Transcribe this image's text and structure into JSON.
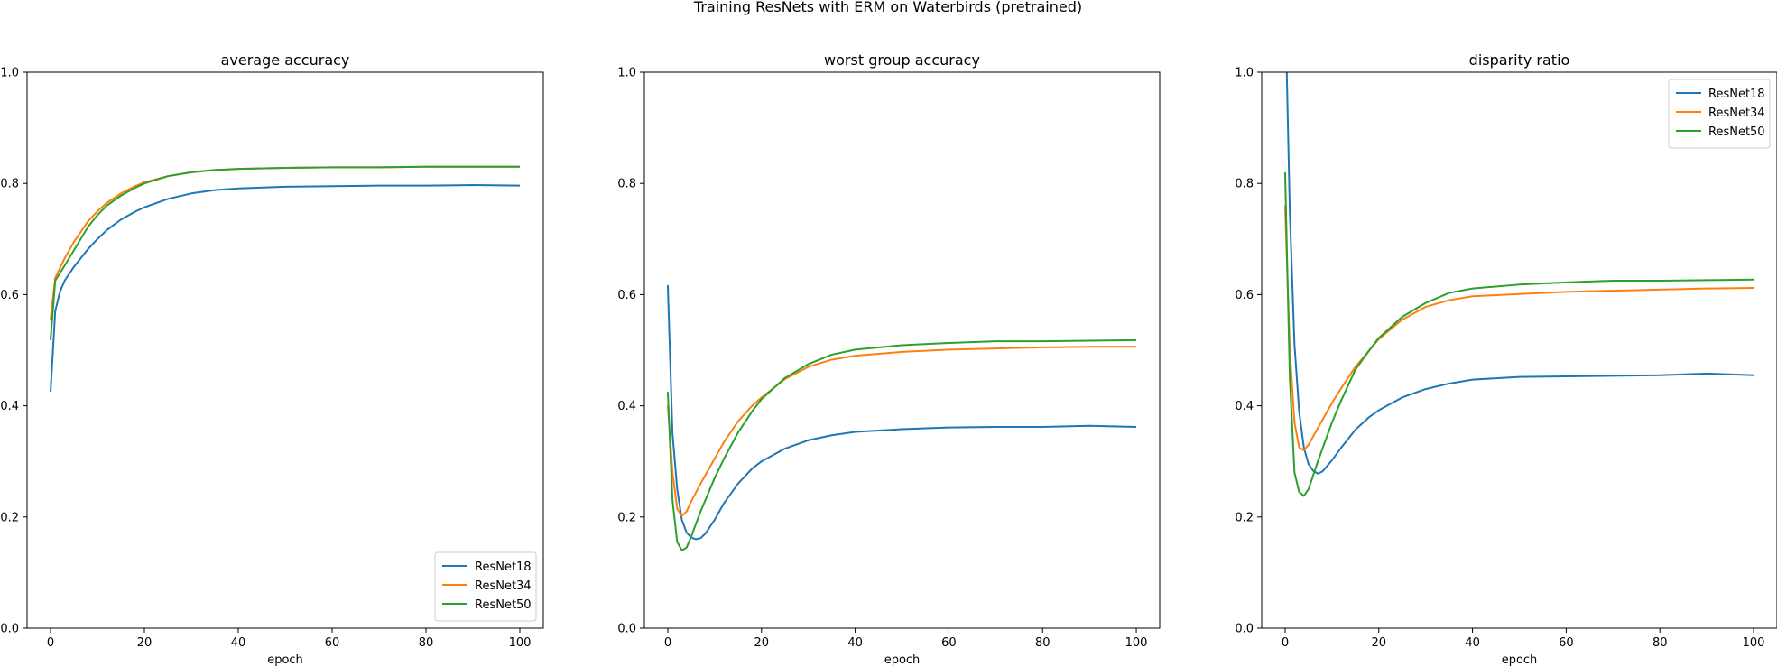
{
  "suptitle": "Training ResNets with ERM on Waterbirds (pretrained)",
  "colors": {
    "ResNet18": "#1f77b4",
    "ResNet34": "#ff7f0e",
    "ResNet50": "#2ca02c"
  },
  "chart_data": [
    {
      "type": "line",
      "title": "average accuracy",
      "xlabel": "epoch",
      "ylabel": "",
      "xlim": [
        -5,
        105
      ],
      "ylim": [
        0.0,
        1.0
      ],
      "xticks": [
        0,
        20,
        40,
        60,
        80,
        100
      ],
      "xtick_labels": [
        "0",
        "20",
        "40",
        "60",
        "80",
        "100"
      ],
      "yticks": [
        0.0,
        0.2,
        0.4,
        0.6,
        0.8,
        1.0
      ],
      "ytick_labels": [
        "0.0",
        "0.2",
        "0.4",
        "0.6",
        "0.8",
        "1.0"
      ],
      "legend": "lower-right",
      "series": [
        {
          "name": "ResNet18",
          "points": [
            [
              0,
              0.425
            ],
            [
              1,
              0.57
            ],
            [
              2,
              0.605
            ],
            [
              3,
              0.625
            ],
            [
              5,
              0.65
            ],
            [
              8,
              0.682
            ],
            [
              10,
              0.7
            ],
            [
              12,
              0.716
            ],
            [
              15,
              0.735
            ],
            [
              18,
              0.749
            ],
            [
              20,
              0.757
            ],
            [
              25,
              0.772
            ],
            [
              30,
              0.782
            ],
            [
              35,
              0.788
            ],
            [
              40,
              0.791
            ],
            [
              50,
              0.794
            ],
            [
              60,
              0.795
            ],
            [
              70,
              0.796
            ],
            [
              80,
              0.796
            ],
            [
              90,
              0.797
            ],
            [
              100,
              0.796
            ]
          ]
        },
        {
          "name": "ResNet34",
          "points": [
            [
              0,
              0.555
            ],
            [
              1,
              0.63
            ],
            [
              3,
              0.665
            ],
            [
              5,
              0.695
            ],
            [
              8,
              0.732
            ],
            [
              10,
              0.75
            ],
            [
              12,
              0.765
            ],
            [
              15,
              0.782
            ],
            [
              18,
              0.795
            ],
            [
              20,
              0.802
            ],
            [
              25,
              0.813
            ],
            [
              30,
              0.82
            ],
            [
              35,
              0.824
            ],
            [
              40,
              0.826
            ],
            [
              50,
              0.828
            ],
            [
              60,
              0.829
            ],
            [
              70,
              0.829
            ],
            [
              80,
              0.83
            ],
            [
              90,
              0.83
            ],
            [
              100,
              0.83
            ]
          ]
        },
        {
          "name": "ResNet50",
          "points": [
            [
              0,
              0.518
            ],
            [
              1,
              0.625
            ],
            [
              3,
              0.652
            ],
            [
              5,
              0.68
            ],
            [
              8,
              0.722
            ],
            [
              10,
              0.743
            ],
            [
              12,
              0.76
            ],
            [
              15,
              0.778
            ],
            [
              18,
              0.792
            ],
            [
              20,
              0.8
            ],
            [
              25,
              0.813
            ],
            [
              30,
              0.82
            ],
            [
              35,
              0.824
            ],
            [
              40,
              0.826
            ],
            [
              50,
              0.828
            ],
            [
              60,
              0.829
            ],
            [
              70,
              0.829
            ],
            [
              80,
              0.83
            ],
            [
              90,
              0.83
            ],
            [
              100,
              0.83
            ]
          ]
        }
      ]
    },
    {
      "type": "line",
      "title": "worst group accuracy",
      "xlabel": "epoch",
      "ylabel": "",
      "xlim": [
        -5,
        105
      ],
      "ylim": [
        0.0,
        1.0
      ],
      "xticks": [
        0,
        20,
        40,
        60,
        80,
        100
      ],
      "xtick_labels": [
        "0",
        "20",
        "40",
        "60",
        "80",
        "100"
      ],
      "yticks": [
        0.0,
        0.2,
        0.4,
        0.6,
        0.8,
        1.0
      ],
      "ytick_labels": [
        "0.0",
        "0.2",
        "0.4",
        "0.6",
        "0.8",
        "1.0"
      ],
      "legend": "none",
      "series": [
        {
          "name": "ResNet18",
          "points": [
            [
              0,
              0.617
            ],
            [
              1,
              0.35
            ],
            [
              2,
              0.25
            ],
            [
              3,
              0.195
            ],
            [
              4,
              0.172
            ],
            [
              5,
              0.163
            ],
            [
              6,
              0.16
            ],
            [
              7,
              0.162
            ],
            [
              8,
              0.17
            ],
            [
              10,
              0.195
            ],
            [
              12,
              0.225
            ],
            [
              15,
              0.26
            ],
            [
              18,
              0.287
            ],
            [
              20,
              0.3
            ],
            [
              25,
              0.323
            ],
            [
              30,
              0.338
            ],
            [
              35,
              0.347
            ],
            [
              40,
              0.353
            ],
            [
              50,
              0.358
            ],
            [
              60,
              0.361
            ],
            [
              70,
              0.362
            ],
            [
              80,
              0.362
            ],
            [
              90,
              0.364
            ],
            [
              100,
              0.362
            ]
          ]
        },
        {
          "name": "ResNet34",
          "points": [
            [
              0,
              0.4
            ],
            [
              1,
              0.28
            ],
            [
              2,
              0.215
            ],
            [
              3,
              0.202
            ],
            [
              4,
              0.21
            ],
            [
              5,
              0.228
            ],
            [
              7,
              0.26
            ],
            [
              10,
              0.305
            ],
            [
              12,
              0.335
            ],
            [
              15,
              0.372
            ],
            [
              18,
              0.4
            ],
            [
              20,
              0.415
            ],
            [
              25,
              0.448
            ],
            [
              30,
              0.47
            ],
            [
              35,
              0.483
            ],
            [
              40,
              0.49
            ],
            [
              50,
              0.497
            ],
            [
              60,
              0.501
            ],
            [
              70,
              0.503
            ],
            [
              80,
              0.505
            ],
            [
              90,
              0.506
            ],
            [
              100,
              0.506
            ]
          ]
        },
        {
          "name": "ResNet50",
          "points": [
            [
              0,
              0.425
            ],
            [
              1,
              0.23
            ],
            [
              2,
              0.155
            ],
            [
              3,
              0.14
            ],
            [
              4,
              0.145
            ],
            [
              5,
              0.165
            ],
            [
              7,
              0.21
            ],
            [
              10,
              0.27
            ],
            [
              12,
              0.305
            ],
            [
              15,
              0.352
            ],
            [
              18,
              0.39
            ],
            [
              20,
              0.412
            ],
            [
              25,
              0.45
            ],
            [
              30,
              0.475
            ],
            [
              35,
              0.492
            ],
            [
              40,
              0.501
            ],
            [
              50,
              0.509
            ],
            [
              60,
              0.513
            ],
            [
              70,
              0.516
            ],
            [
              80,
              0.516
            ],
            [
              90,
              0.517
            ],
            [
              100,
              0.518
            ]
          ]
        }
      ]
    },
    {
      "type": "line",
      "title": "disparity ratio",
      "xlabel": "epoch",
      "ylabel": "",
      "xlim": [
        -5,
        105
      ],
      "ylim": [
        0.0,
        1.0
      ],
      "xticks": [
        0,
        20,
        40,
        60,
        80,
        100
      ],
      "xtick_labels": [
        "0",
        "20",
        "40",
        "60",
        "80",
        "100"
      ],
      "yticks": [
        0.0,
        0.2,
        0.4,
        0.6,
        0.8,
        1.0
      ],
      "ytick_labels": [
        "0.0",
        "0.2",
        "0.4",
        "0.6",
        "0.8",
        "1.0"
      ],
      "legend": "upper-right",
      "series": [
        {
          "name": "ResNet18",
          "points": [
            [
              0.3,
              1.02
            ],
            [
              1,
              0.75
            ],
            [
              2,
              0.51
            ],
            [
              3,
              0.39
            ],
            [
              4,
              0.325
            ],
            [
              5,
              0.295
            ],
            [
              6,
              0.283
            ],
            [
              7,
              0.278
            ],
            [
              8,
              0.282
            ],
            [
              10,
              0.302
            ],
            [
              12,
              0.325
            ],
            [
              15,
              0.357
            ],
            [
              18,
              0.38
            ],
            [
              20,
              0.392
            ],
            [
              25,
              0.415
            ],
            [
              30,
              0.43
            ],
            [
              35,
              0.44
            ],
            [
              40,
              0.447
            ],
            [
              50,
              0.452
            ],
            [
              60,
              0.453
            ],
            [
              70,
              0.454
            ],
            [
              80,
              0.455
            ],
            [
              90,
              0.458
            ],
            [
              100,
              0.455
            ]
          ]
        },
        {
          "name": "ResNet34",
          "points": [
            [
              0,
              0.76
            ],
            [
              1,
              0.5
            ],
            [
              2,
              0.37
            ],
            [
              3,
              0.325
            ],
            [
              4,
              0.32
            ],
            [
              5,
              0.33
            ],
            [
              7,
              0.36
            ],
            [
              10,
              0.405
            ],
            [
              12,
              0.432
            ],
            [
              15,
              0.47
            ],
            [
              18,
              0.5
            ],
            [
              20,
              0.52
            ],
            [
              25,
              0.555
            ],
            [
              30,
              0.578
            ],
            [
              35,
              0.59
            ],
            [
              40,
              0.597
            ],
            [
              50,
              0.601
            ],
            [
              60,
              0.605
            ],
            [
              70,
              0.607
            ],
            [
              80,
              0.609
            ],
            [
              90,
              0.611
            ],
            [
              100,
              0.612
            ]
          ]
        },
        {
          "name": "ResNet50",
          "points": [
            [
              0,
              0.82
            ],
            [
              1,
              0.45
            ],
            [
              2,
              0.28
            ],
            [
              3,
              0.245
            ],
            [
              4,
              0.238
            ],
            [
              5,
              0.25
            ],
            [
              7,
              0.3
            ],
            [
              10,
              0.37
            ],
            [
              12,
              0.41
            ],
            [
              15,
              0.465
            ],
            [
              18,
              0.5
            ],
            [
              20,
              0.522
            ],
            [
              25,
              0.56
            ],
            [
              30,
              0.585
            ],
            [
              35,
              0.603
            ],
            [
              40,
              0.611
            ],
            [
              50,
              0.618
            ],
            [
              60,
              0.622
            ],
            [
              70,
              0.625
            ],
            [
              80,
              0.625
            ],
            [
              90,
              0.626
            ],
            [
              100,
              0.627
            ]
          ]
        }
      ]
    }
  ]
}
